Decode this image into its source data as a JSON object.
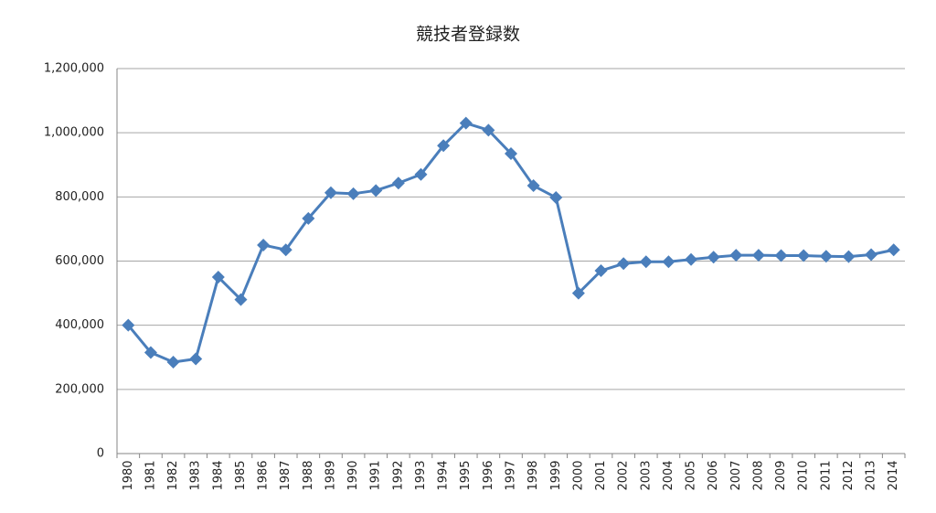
{
  "chart_data": {
    "type": "line",
    "title": "競技者登録数",
    "categories": [
      "1980",
      "1981",
      "1982",
      "1983",
      "1984",
      "1985",
      "1986",
      "1987",
      "1988",
      "1989",
      "1990",
      "1991",
      "1992",
      "1993",
      "1994",
      "1995",
      "1996",
      "1997",
      "1998",
      "1999",
      "2000",
      "2001",
      "2002",
      "2003",
      "2004",
      "2005",
      "2006",
      "2007",
      "2008",
      "2009",
      "2010",
      "2011",
      "2012",
      "2013",
      "2014"
    ],
    "series": [
      {
        "color": "#4a7ebb",
        "values": [
          400000,
          315000,
          285000,
          295000,
          550000,
          480000,
          650000,
          635000,
          733000,
          813000,
          810000,
          820000,
          843000,
          870000,
          960000,
          1030000,
          1008000,
          935000,
          835000,
          798000,
          500000,
          570000,
          592000,
          598000,
          598000,
          605000,
          612000,
          618000,
          618000,
          617000,
          617000,
          615000,
          614000,
          620000,
          635000
        ]
      }
    ],
    "ylim": [
      0,
      1200000
    ],
    "yticks": [
      0,
      {
        "value": 200000,
        "label": "200,000"
      },
      {
        "value": 400000,
        "label": "400,000"
      },
      {
        "value": 600000,
        "label": "600,000"
      },
      {
        "value": 800000,
        "label": "800,000"
      },
      {
        "value": 1000000,
        "label": "1,000,000"
      },
      {
        "value": 1200000,
        "label": "1,200,000"
      }
    ],
    "grid": true
  }
}
